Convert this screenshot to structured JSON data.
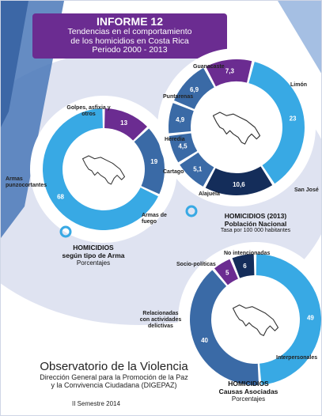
{
  "header": {
    "report": "INFORME 12",
    "line1": "Tendencias en el comportamiento",
    "line2": "de los homicidios en Costa Rica",
    "period": "Periodo 2000 - 2013"
  },
  "footer": {
    "title": "Observatorio de la Violencia",
    "line1": "Dirección General para la Promoción de la Paz",
    "line2": "y la Convivencia Ciudadana (DIGEPAZ)",
    "semester": "II Semestre 2014"
  },
  "colors": {
    "purple": "#6b2c91",
    "light_blue": "#38a9e4",
    "mid_blue": "#3a6aa6",
    "dark_navy": "#142d5a"
  },
  "chart_data": [
    {
      "type": "pie",
      "title_line1": "HOMICIDIOS",
      "title_line2": "según tipo de Arma",
      "subtitle": "Porcentajes",
      "categories": [
        "Golpes, asfixia y otros",
        "Armas punzocortantes",
        "Armas de fuego"
      ],
      "values": [
        13,
        19,
        68
      ],
      "value_labels": [
        "13",
        "19",
        "68"
      ],
      "colors": [
        "#6b2c91",
        "#3a6aa6",
        "#38a9e4"
      ],
      "start_angle": 0
    },
    {
      "type": "pie",
      "title_line1": "HOMICIDIOS (2013)",
      "title_line2": "Población Nacional",
      "subtitle": "Tasa por 100 000 habitantes",
      "categories": [
        "Guanacaste",
        "Limón",
        "San José",
        "Alajuela",
        "Cartago",
        "Heredia",
        "Puntarenas"
      ],
      "values": [
        7.3,
        23,
        10.6,
        5.1,
        4.5,
        4.9,
        6.9
      ],
      "value_labels": [
        "7,3",
        "23",
        "10,6",
        "5,1",
        "4,5",
        "4,9",
        "6,9"
      ],
      "colors": [
        "#6b2c91",
        "#38a9e4",
        "#142d5a",
        "#3a6aa6",
        "#3a6aa6",
        "#3a6aa6",
        "#3a6aa6"
      ],
      "start_angle": -28
    },
    {
      "type": "pie",
      "title_line1": "HOMICIDIOS",
      "title_line2": "Causas Asociadas",
      "subtitle": "Porcentajes",
      "categories": [
        "Socio-políticas",
        "No intencionadas",
        "Interpersonales",
        "Relacionadas con actividades delictivas"
      ],
      "values": [
        5,
        6,
        49,
        40
      ],
      "value_labels": [
        "5",
        "6",
        "49",
        "40"
      ],
      "colors": [
        "#6b2c91",
        "#142d5a",
        "#38a9e4",
        "#3a6aa6"
      ],
      "start_angle": -40
    }
  ]
}
